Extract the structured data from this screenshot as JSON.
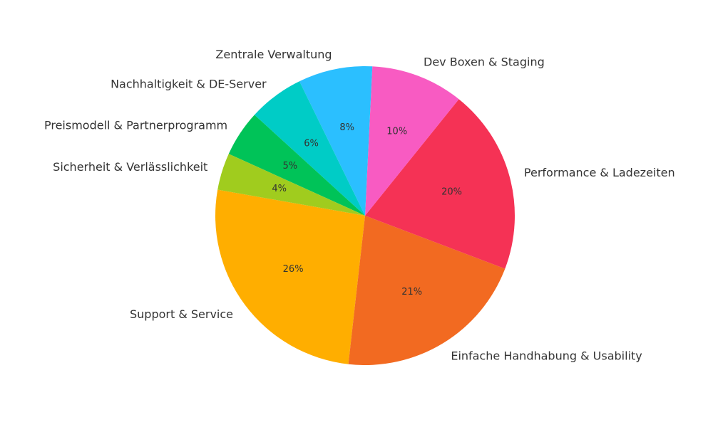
{
  "chart_data": {
    "type": "pie",
    "title": "",
    "start_angle_deg": 170,
    "direction": "counterclockwise",
    "slices": [
      {
        "label": "Support & Service",
        "value": 26,
        "display": "26%",
        "color": "#FFAE00"
      },
      {
        "label": "Einfache Handhabung & Usability",
        "value": 21,
        "display": "21%",
        "color": "#F26A21"
      },
      {
        "label": "Performance & Ladezeiten",
        "value": 20,
        "display": "20%",
        "color": "#F53255"
      },
      {
        "label": "Dev Boxen & Staging",
        "value": 10,
        "display": "10%",
        "color": "#F85BC2"
      },
      {
        "label": "Zentrale Verwaltung",
        "value": 8,
        "display": "8%",
        "color": "#2BBFFF"
      },
      {
        "label": "Nachhaltigkeit & DE-Server",
        "value": 6,
        "display": "6%",
        "color": "#00CCC6"
      },
      {
        "label": "Preismodell & Partnerprogramm",
        "value": 5,
        "display": "5%",
        "color": "#00C358"
      },
      {
        "label": "Sicherheit & Verlässlichkeit",
        "value": 4,
        "display": "4%",
        "color": "#A0CC1E"
      }
    ]
  }
}
